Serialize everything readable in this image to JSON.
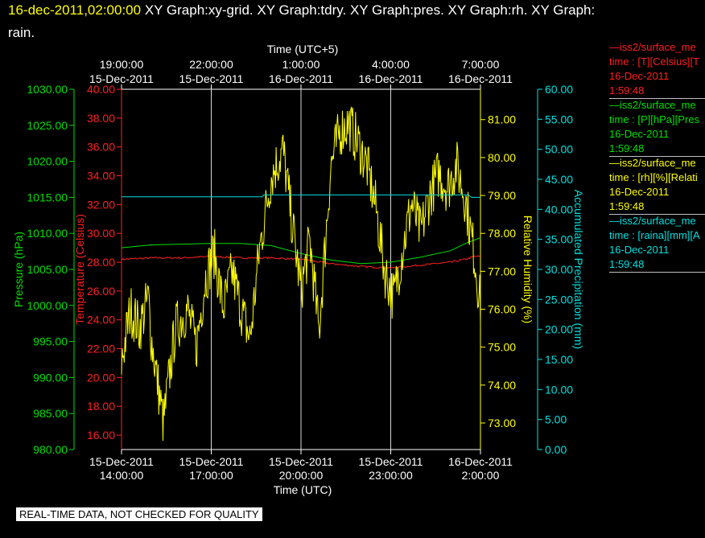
{
  "header": {
    "timestamp": "16-dec-2011,02:00:00",
    "titles": "  XY Graph:xy-grid.  XY Graph:tdry.  XY Graph:pres.  XY Graph:rh.  XY Graph:",
    "titles_line2": "rain."
  },
  "legend": [
    {
      "line": "—iss2/surface_me",
      "unit": "time : [T][Celsius][T",
      "date": "16-Dec-2011",
      "time": "1:59:48",
      "color": "#ff2020"
    },
    {
      "line": "—iss2/surface_me",
      "unit": "time : [P][hPa][Pres",
      "date": "16-Dec-2011",
      "time": "1:59:48",
      "color": "#00e000"
    },
    {
      "line": "—iss2/surface_me",
      "unit": "time : [rh][%][Relati",
      "date": "16-Dec-2011",
      "time": "1:59:48",
      "color": "#ffff00"
    },
    {
      "line": "—iss2/surface_me",
      "unit": "time : [raina][mm][A",
      "date": "16-Dec-2011",
      "time": "1:59:48",
      "color": "#00e0e0"
    }
  ],
  "footer": "REAL-TIME DATA, NOT CHECKED FOR QUALITY",
  "chart_data": {
    "type": "line",
    "top_axis": {
      "label": "Time (UTC+5)",
      "ticks": [
        {
          "time": "19:00:00",
          "date": "15-Dec-2011"
        },
        {
          "time": "22:00:00",
          "date": "15-Dec-2011"
        },
        {
          "time": "1:00:00",
          "date": "16-Dec-2011"
        },
        {
          "time": "4:00:00",
          "date": "16-Dec-2011"
        },
        {
          "time": "7:00:00",
          "date": "16-Dec-2011"
        }
      ]
    },
    "bottom_axis": {
      "label": "Time (UTC)",
      "range_hours": [
        0,
        12
      ],
      "ticks": [
        {
          "date": "15-Dec-2011",
          "time": "14:00:00"
        },
        {
          "date": "15-Dec-2011",
          "time": "17:00:00"
        },
        {
          "date": "15-Dec-2011",
          "time": "20:00:00"
        },
        {
          "date": "15-Dec-2011",
          "time": "23:00:00"
        },
        {
          "date": "16-Dec-2011",
          "time": "2:00:00"
        }
      ]
    },
    "axes": {
      "pressure": {
        "label": "Pressure (hPa)",
        "color": "#00e000",
        "min": 980,
        "max": 1030,
        "ticks": [
          "980.00",
          "985.00",
          "990.00",
          "995.00",
          "1000.00",
          "1005.00",
          "1010.00",
          "1015.00",
          "1020.00",
          "1025.00",
          "1030.00"
        ]
      },
      "temperature": {
        "label": "Temperature (Celsius)",
        "color": "#ff2020",
        "min": 15,
        "max": 40,
        "ticks": [
          "16.00",
          "18.00",
          "20.00",
          "22.00",
          "24.00",
          "26.00",
          "28.00",
          "30.00",
          "32.00",
          "34.00",
          "36.00",
          "38.00",
          "40.00"
        ]
      },
      "rh": {
        "label": "Relative Humidity (%)",
        "color": "#ffff00",
        "min": 72.3,
        "max": 81.8,
        "ticks": [
          "73.00",
          "74.00",
          "75.00",
          "76.00",
          "77.00",
          "78.00",
          "79.00",
          "80.00",
          "81.00"
        ]
      },
      "precip": {
        "label": "Accumulated Precipitation (mm)",
        "color": "#00e0e0",
        "min": 0,
        "max": 60,
        "ticks": [
          "0.00",
          "5.00",
          "10.00",
          "15.00",
          "20.00",
          "25.00",
          "30.00",
          "35.00",
          "40.00",
          "45.00",
          "50.00",
          "55.00",
          "60.00"
        ]
      }
    },
    "grid": true,
    "series": [
      {
        "axis": "temperature",
        "hours": [
          0,
          1,
          2,
          3,
          4,
          5,
          6,
          7,
          8,
          9,
          10,
          11,
          11.5,
          11.8,
          12
        ],
        "values": [
          28.2,
          28.3,
          28.3,
          28.4,
          28.3,
          28.3,
          28.2,
          27.9,
          27.7,
          27.6,
          27.8,
          28.0,
          28.2,
          28.4,
          28.4
        ]
      },
      {
        "axis": "pressure",
        "hours": [
          0,
          1,
          2,
          3,
          4,
          5,
          6,
          7,
          8,
          9,
          10,
          11,
          11.5,
          12
        ],
        "values": [
          1008.0,
          1008.4,
          1008.5,
          1008.6,
          1008.6,
          1008.3,
          1007.2,
          1006.3,
          1005.8,
          1006.0,
          1006.7,
          1007.6,
          1008.6,
          1009.4
        ]
      },
      {
        "axis": "rh",
        "hours": [
          0,
          0.3,
          0.6,
          0.9,
          1.0,
          1.2,
          1.4,
          1.8,
          2.2,
          2.5,
          2.8,
          3.1,
          3.4,
          3.7,
          4.0,
          4.3,
          4.6,
          5.0,
          5.4,
          5.7,
          6.0,
          6.3,
          6.6,
          7.0,
          7.3,
          7.6,
          7.9,
          8.2,
          8.5,
          8.8,
          9.1,
          9.4,
          9.7,
          10.0,
          10.3,
          10.6,
          10.9,
          11.2,
          11.5,
          11.8,
          12.0
        ],
        "values": [
          74.6,
          76.0,
          75.5,
          76.3,
          75.2,
          74.1,
          73.0,
          75.5,
          76.0,
          75.0,
          76.8,
          77.5,
          76.0,
          77.0,
          76.0,
          75.2,
          77.5,
          79.5,
          80.2,
          78.3,
          76.5,
          77.8,
          75.4,
          79.8,
          80.7,
          80.9,
          80.4,
          79.8,
          78.7,
          77.0,
          76.3,
          77.6,
          78.8,
          78.0,
          79.0,
          79.6,
          79.2,
          79.8,
          78.9,
          77.4,
          76.1
        ]
      },
      {
        "axis": "precip",
        "hours": [
          0,
          4.7,
          4.75,
          11.6,
          11.7,
          12
        ],
        "values": [
          42.1,
          42.1,
          42.4,
          42.4,
          42.0,
          42.0
        ]
      }
    ]
  }
}
